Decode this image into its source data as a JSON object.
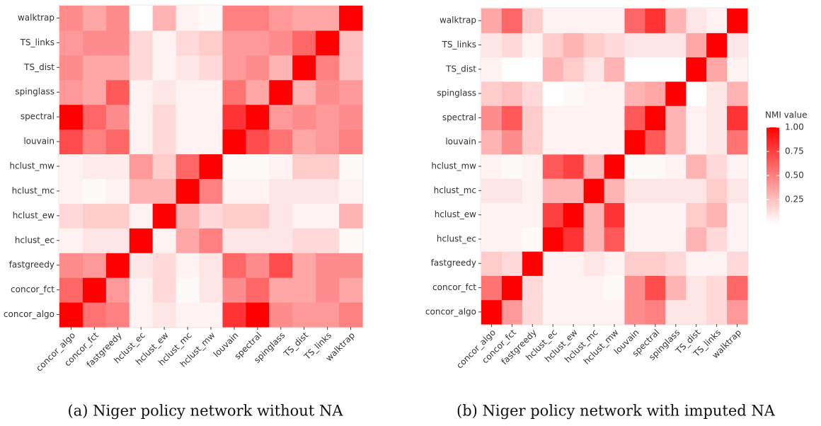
{
  "chart_data": [
    {
      "type": "heatmap",
      "caption": "(a) Niger policy network without NA",
      "categories": [
        "concor_algo",
        "concor_fct",
        "fastgreedy",
        "hclust_ec",
        "hclust_ew",
        "hclust_mc",
        "hclust_mw",
        "louvain",
        "spectral",
        "spinglass",
        "TS_dist",
        "TS_links",
        "walktrap"
      ],
      "low_color": "#ffffff",
      "high_color": "#ff0000",
      "zlim": [
        0,
        1
      ],
      "values": [
        [
          1,
          0.55,
          0.5,
          0.05,
          0.1,
          0.05,
          0.05,
          0.8,
          1,
          0.45,
          0.4,
          0.4,
          0.5
        ],
        [
          0.6,
          1,
          0.4,
          0.05,
          0.15,
          0.02,
          0.1,
          0.45,
          0.6,
          0.35,
          0.35,
          0.45,
          0.35
        ],
        [
          0.45,
          0.4,
          1,
          0.1,
          0.15,
          0.05,
          0.1,
          0.6,
          0.45,
          0.7,
          0.35,
          0.45,
          0.45
        ],
        [
          0.05,
          0.1,
          0.1,
          1,
          0.05,
          0.35,
          0.5,
          0.1,
          0.1,
          0.1,
          0.15,
          0.15,
          0.02
        ],
        [
          0.15,
          0.2,
          0.2,
          0.05,
          1,
          0.3,
          0.15,
          0.2,
          0.2,
          0.1,
          0.05,
          0.05,
          0.3
        ],
        [
          0.05,
          0.02,
          0.05,
          0.3,
          0.3,
          1,
          0.5,
          0.05,
          0.05,
          0.1,
          0.1,
          0.1,
          0.05
        ],
        [
          0.05,
          0.08,
          0.08,
          0.4,
          0.2,
          0.6,
          1,
          0.02,
          0.02,
          0.05,
          0.2,
          0.2,
          0.02
        ],
        [
          0.7,
          0.5,
          0.6,
          0.05,
          0.15,
          0.05,
          0.05,
          1,
          0.7,
          0.55,
          0.35,
          0.4,
          0.5
        ],
        [
          1,
          0.6,
          0.45,
          0.05,
          0.15,
          0.05,
          0.05,
          0.8,
          1,
          0.4,
          0.45,
          0.4,
          0.45
        ],
        [
          0.4,
          0.35,
          0.65,
          0.05,
          0.1,
          0.05,
          0.05,
          0.55,
          0.35,
          1,
          0.3,
          0.45,
          0.4
        ],
        [
          0.45,
          0.35,
          0.35,
          0.15,
          0.05,
          0.1,
          0.15,
          0.4,
          0.45,
          0.3,
          1,
          0.5,
          0.25
        ],
        [
          0.4,
          0.45,
          0.45,
          0.15,
          0.05,
          0.15,
          0.2,
          0.4,
          0.4,
          0.45,
          0.6,
          1,
          0.25
        ],
        [
          0.45,
          0.35,
          0.45,
          0,
          0.3,
          0.05,
          0.02,
          0.5,
          0.5,
          0.4,
          0.35,
          0.35,
          1
        ]
      ]
    },
    {
      "type": "heatmap",
      "caption": "(b) Niger policy network with imputed NA",
      "categories": [
        "concor_algo",
        "concor_fct",
        "fastgreedy",
        "hclust_ec",
        "hclust_ew",
        "hclust_mc",
        "hclust_mw",
        "louvain",
        "spectral",
        "spinglass",
        "TS_dist",
        "TS_links",
        "walktrap"
      ],
      "low_color": "#ffffff",
      "high_color": "#ff0000",
      "zlim": [
        0,
        1
      ],
      "legend_title": "NMI value",
      "legend_ticks": [
        0.25,
        {
          "value": 0.5,
          "label": "0.50"
        },
        0.75,
        {
          "value": 1,
          "label": "1.00"
        }
      ],
      "values": [
        [
          1,
          0.4,
          0.15,
          0.05,
          0.05,
          0.05,
          0.05,
          0.45,
          0.5,
          0.1,
          0.1,
          0.15,
          0.4
        ],
        [
          0.55,
          1,
          0.15,
          0.05,
          0.05,
          0.05,
          0.02,
          0.45,
          0.7,
          0.3,
          0.1,
          0.15,
          0.6
        ],
        [
          0.2,
          0.15,
          1,
          0.05,
          0.05,
          0.1,
          0.05,
          0.2,
          0.2,
          0.15,
          0.05,
          0.05,
          0.15
        ],
        [
          0.05,
          0.05,
          0.02,
          1,
          0.8,
          0.3,
          0.65,
          0.05,
          0.05,
          0.05,
          0.3,
          0.15,
          0.05
        ],
        [
          0.05,
          0.05,
          0.05,
          0.75,
          1,
          0.3,
          0.8,
          0.05,
          0.05,
          0.05,
          0.2,
          0.3,
          0.05
        ],
        [
          0.1,
          0.1,
          0.05,
          0.3,
          0.3,
          1,
          0.3,
          0.1,
          0.1,
          0.1,
          0.1,
          0.2,
          0.1
        ],
        [
          0.05,
          0.02,
          0.05,
          0.65,
          0.75,
          0.3,
          1,
          0.02,
          0.02,
          0.05,
          0.3,
          0.15,
          0.05
        ],
        [
          0.3,
          0.45,
          0.2,
          0.05,
          0.05,
          0.05,
          0.05,
          1,
          0.65,
          0.3,
          0.05,
          0.1,
          0.55
        ],
        [
          0.45,
          0.65,
          0.2,
          0.05,
          0.05,
          0.05,
          0.05,
          0.65,
          1,
          0.3,
          0.05,
          0.1,
          0.8
        ],
        [
          0.2,
          0.25,
          0.15,
          0,
          0.02,
          0.05,
          0.05,
          0.3,
          0.35,
          1,
          0,
          0.1,
          0.3
        ],
        [
          0.05,
          0,
          0,
          0.3,
          0.2,
          0.1,
          0.3,
          0,
          0,
          0,
          1,
          0.35,
          0.05
        ],
        [
          0.1,
          0.15,
          0.05,
          0.2,
          0.3,
          0.2,
          0.15,
          0.1,
          0.1,
          0.1,
          0.35,
          1,
          0.1
        ],
        [
          0.35,
          0.6,
          0.2,
          0.05,
          0.05,
          0.05,
          0.05,
          0.6,
          0.8,
          0.3,
          0.1,
          0.05,
          1
        ]
      ]
    }
  ]
}
